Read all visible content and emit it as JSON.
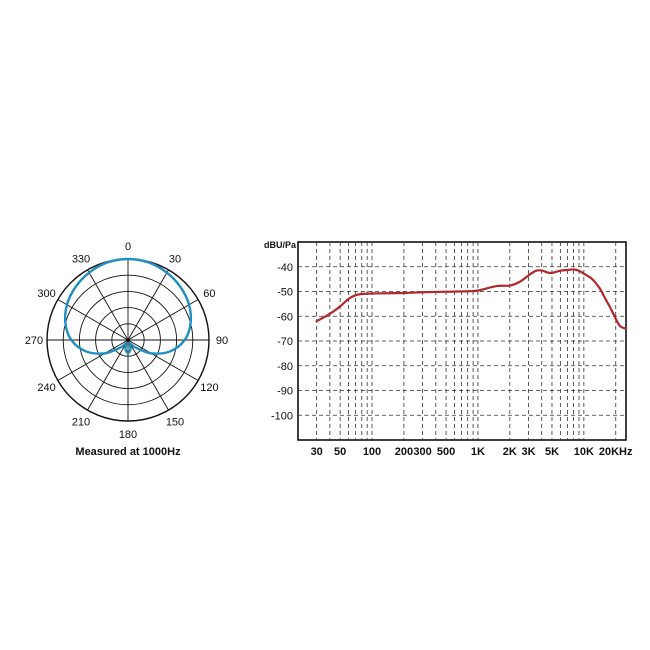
{
  "chart_data": [
    {
      "type": "polar",
      "caption": "Measured at 1000Hz",
      "angle_labels": [
        "0",
        "30",
        "60",
        "90",
        "120",
        "150",
        "180",
        "210",
        "240",
        "270",
        "300",
        "330"
      ],
      "angles_deg": [
        0,
        30,
        60,
        90,
        120,
        150,
        180,
        210,
        240,
        270,
        300,
        330
      ],
      "rings": 5,
      "series": [
        {
          "color": "#1f8fc0",
          "points": [
            {
              "angle": 0,
              "r": 1.0
            },
            {
              "angle": 15,
              "r": 0.99
            },
            {
              "angle": 30,
              "r": 0.96
            },
            {
              "angle": 45,
              "r": 0.92
            },
            {
              "angle": 60,
              "r": 0.87
            },
            {
              "angle": 75,
              "r": 0.8
            },
            {
              "angle": 90,
              "r": 0.7
            },
            {
              "angle": 105,
              "r": 0.54
            },
            {
              "angle": 120,
              "r": 0.33
            },
            {
              "angle": 135,
              "r": 0.13
            },
            {
              "angle": 150,
              "r": 0.05
            },
            {
              "angle": 165,
              "r": 0.12
            },
            {
              "angle": 180,
              "r": 0.16
            },
            {
              "angle": 195,
              "r": 0.12
            },
            {
              "angle": 210,
              "r": 0.05
            },
            {
              "angle": 225,
              "r": 0.13
            },
            {
              "angle": 240,
              "r": 0.33
            },
            {
              "angle": 255,
              "r": 0.54
            },
            {
              "angle": 270,
              "r": 0.7
            },
            {
              "angle": 285,
              "r": 0.8
            },
            {
              "angle": 300,
              "r": 0.87
            },
            {
              "angle": 315,
              "r": 0.92
            },
            {
              "angle": 330,
              "r": 0.96
            },
            {
              "angle": 345,
              "r": 0.99
            }
          ]
        }
      ]
    },
    {
      "type": "line",
      "ylabel": "dBU/Pa",
      "x_scale": "log",
      "xlim": [
        20,
        25000
      ],
      "ylim": [
        -110,
        -30
      ],
      "y_ticks": [
        -40,
        -50,
        -60,
        -70,
        -80,
        -90,
        -100
      ],
      "x_tick_labels": [
        {
          "value": 30,
          "label": "30"
        },
        {
          "value": 50,
          "label": "50"
        },
        {
          "value": 100,
          "label": "100"
        },
        {
          "value": 200,
          "label": "200"
        },
        {
          "value": 300,
          "label": "300"
        },
        {
          "value": 500,
          "label": "500"
        },
        {
          "value": 1000,
          "label": "1K"
        },
        {
          "value": 2000,
          "label": "2K"
        },
        {
          "value": 3000,
          "label": "3K"
        },
        {
          "value": 5000,
          "label": "5K"
        },
        {
          "value": 10000,
          "label": "10K"
        },
        {
          "value": 20000,
          "label": "20KHz"
        }
      ],
      "grid": true,
      "series": [
        {
          "color": "#b3282d",
          "x": [
            30,
            40,
            50,
            60,
            70,
            80,
            100,
            200,
            300,
            500,
            800,
            1000,
            1500,
            2000,
            2500,
            3000,
            3500,
            4000,
            4500,
            5000,
            6000,
            7000,
            8000,
            9000,
            10000,
            12000,
            14000,
            16000,
            18000,
            20000,
            22000,
            25000
          ],
          "y": [
            -62,
            -59,
            -56,
            -53,
            -51.5,
            -51,
            -50.8,
            -50.6,
            -50.3,
            -50.1,
            -49.9,
            -49.6,
            -47.8,
            -47.6,
            -46,
            -43.5,
            -41.7,
            -41.5,
            -42.3,
            -42.5,
            -41.6,
            -41.3,
            -41.1,
            -41.6,
            -42.8,
            -45,
            -48.5,
            -53,
            -57,
            -61,
            -64,
            -65
          ]
        }
      ]
    }
  ]
}
